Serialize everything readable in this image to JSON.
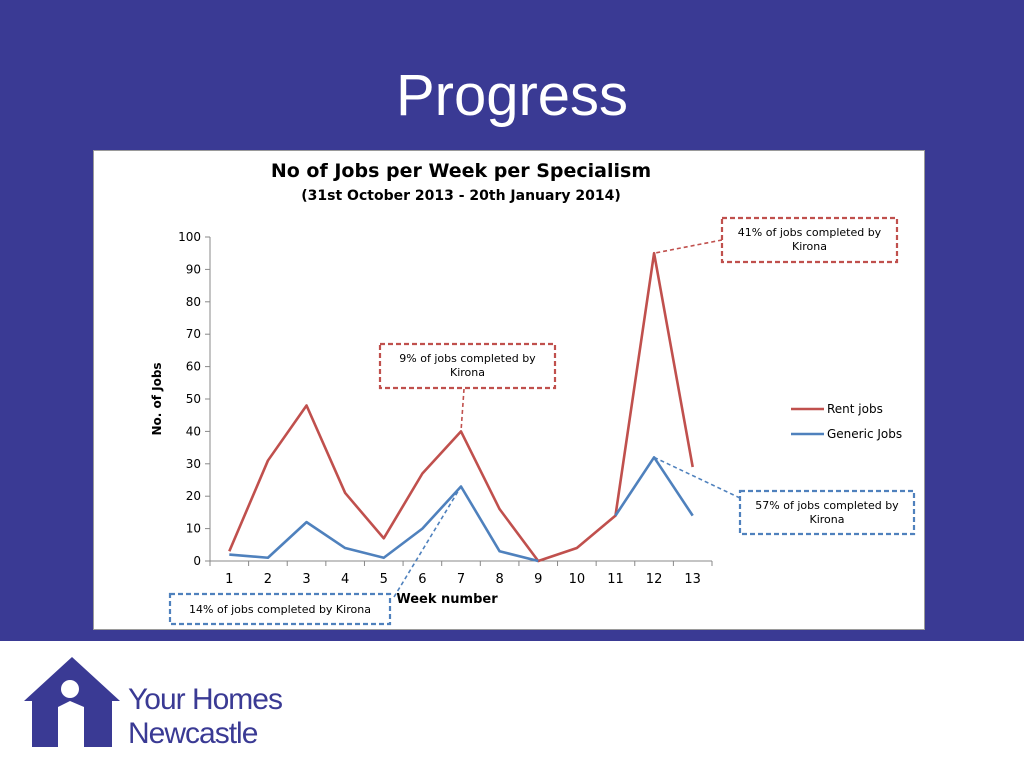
{
  "slide": {
    "title": "Progress"
  },
  "chart_data": {
    "type": "line",
    "title": "No of Jobs per Week per Specialism",
    "subtitle": "(31st October 2013 - 20th January 2014)",
    "xlabel": "Week number",
    "ylabel": "No. of Jobs",
    "categories": [
      "1",
      "2",
      "3",
      "4",
      "5",
      "6",
      "7",
      "8",
      "9",
      "10",
      "11",
      "12",
      "13"
    ],
    "ylim": [
      0,
      100
    ],
    "yticks": [
      0,
      10,
      20,
      30,
      40,
      50,
      60,
      70,
      80,
      90,
      100
    ],
    "grid": false,
    "legend_position": "right",
    "series": [
      {
        "name": "Rent jobs",
        "color": "#c0504d",
        "values": [
          3,
          31,
          48,
          21,
          7,
          27,
          40,
          16,
          0,
          4,
          14,
          95,
          29
        ]
      },
      {
        "name": "Generic Jobs",
        "color": "#4f81bd",
        "values": [
          2,
          1,
          12,
          4,
          1,
          10,
          23,
          3,
          0,
          null,
          14,
          32,
          14
        ]
      }
    ],
    "annotations": [
      {
        "text": "9% of jobs completed by Kirona",
        "series": "Rent jobs",
        "week": "7",
        "color": "#c0504d"
      },
      {
        "text": "41% of jobs completed by Kirona",
        "series": "Rent jobs",
        "week": "12",
        "color": "#c0504d"
      },
      {
        "text": "14%  of jobs completed by Kirona",
        "series": "Generic Jobs",
        "week": "7",
        "color": "#4f81bd"
      },
      {
        "text": "57% of jobs completed by Kirona",
        "series": "Generic Jobs",
        "week": "12",
        "color": "#4f81bd"
      }
    ]
  },
  "logo": {
    "line1": "Your Homes",
    "line2": "Newcastle",
    "color": "#3a3a94"
  }
}
